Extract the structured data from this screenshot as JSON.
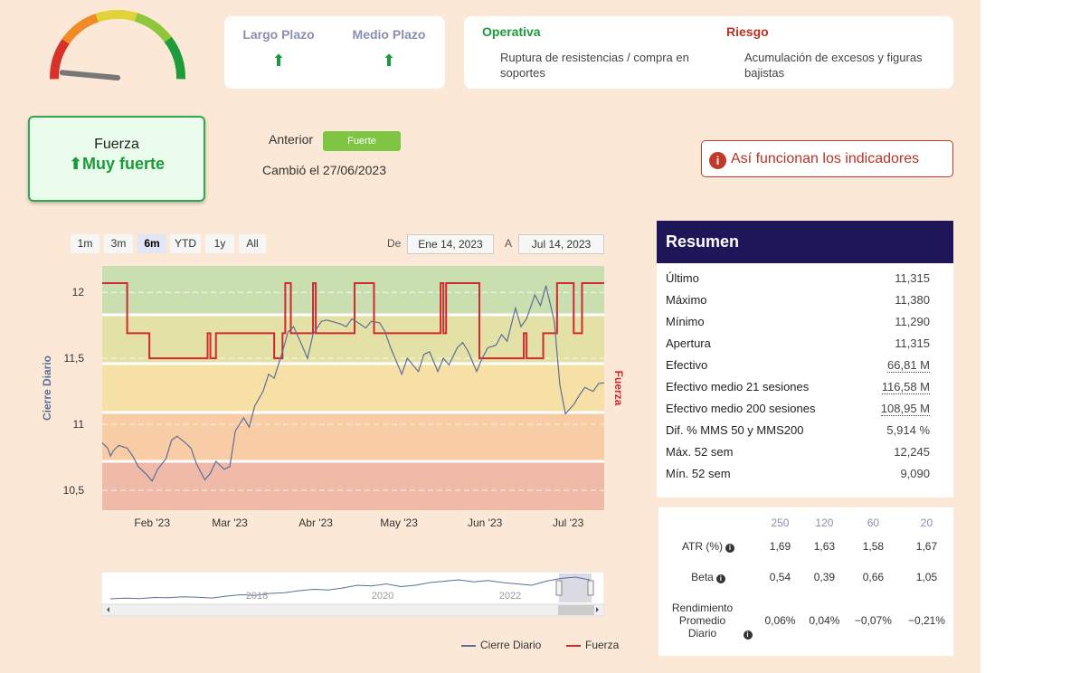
{
  "gauge": {
    "icon": "speedometer-gauge",
    "segment_colors": [
      "#d63229",
      "#f08a24",
      "#e3d33a",
      "#8fc63b",
      "#1f9c3a"
    ],
    "needle_color": "#777777",
    "level_fraction": 0.05
  },
  "trend": {
    "largo_label": "Largo Plazo",
    "medio_label": "Medio Plazo",
    "largo_arrow": "⬆",
    "medio_arrow": "⬆"
  },
  "operativa": {
    "title": "Operativa",
    "text": "Ruptura de resistencias / compra en soportes",
    "color": "#1a9a3a"
  },
  "riesgo": {
    "title": "Riesgo",
    "text": "Acumulación de excesos y figuras bajistas",
    "color": "#b93324"
  },
  "fuerza": {
    "label": "Fuerza",
    "arrow": "⬆",
    "value": "Muy fuerte"
  },
  "anterior": {
    "label": "Anterior",
    "badge": "Fuerte"
  },
  "cambio": "Cambió el 27/06/2023",
  "info_button": {
    "icon": "i",
    "label": "Así funcionan los indicadores"
  },
  "ranges": [
    "1m",
    "3m",
    "6m",
    "YTD",
    "1y",
    "All"
  ],
  "selected_range": "6m",
  "date_range": {
    "from_label": "De",
    "from": "Ene 14, 2023",
    "to_label": "A",
    "to": "Jul 14, 2023"
  },
  "legend": {
    "cierre": "Cierre Diario",
    "fuerza": "Fuerza"
  },
  "resumen": {
    "title": "Resumen",
    "rows": [
      {
        "label": "Último",
        "value": "11,315"
      },
      {
        "label": "Máximo",
        "value": "11,380"
      },
      {
        "label": "Mínimo",
        "value": "11,290"
      },
      {
        "label": "Apertura",
        "value": "11,315"
      },
      {
        "label": "Efectivo",
        "value": "66,81 M"
      },
      {
        "label": "Efectivo medio 21 sesiones",
        "value": "116,58 M"
      },
      {
        "label": "Efectivo medio 200 sesiones",
        "value": "108,95 M"
      },
      {
        "label": "Dif. % MMS 50 y MMS200",
        "value": "5,914 %"
      },
      {
        "label": "Máx. 52 sem",
        "value": "12,245"
      },
      {
        "label": "Mín. 52 sem",
        "value": "9,090"
      }
    ]
  },
  "stats": {
    "headers": [
      "250",
      "120",
      "60",
      "20"
    ],
    "atr": {
      "label": "ATR (%)",
      "values": [
        "1,69",
        "1,63",
        "1,58",
        "1,67"
      ]
    },
    "beta": {
      "label": "Beta",
      "values": [
        "0,54",
        "0,39",
        "0,66",
        "1,05"
      ]
    },
    "rend": {
      "label": "Rendimiento Promedio Diario",
      "values": [
        "0,06%",
        "0,04%",
        "−0,07%",
        "−0,21%"
      ]
    }
  },
  "chart_data": {
    "type": "line",
    "title": "",
    "ylabel": "Cierre Diario",
    "y2label": "Fuerza",
    "ylim": [
      10.35,
      12.2
    ],
    "yticks": [
      "10,5",
      "11",
      "11,5",
      "12"
    ],
    "xticks": [
      "Feb '23",
      "Mar '23",
      "Abr '23",
      "May '23",
      "Jun '23",
      "Jul '23"
    ],
    "xrange": [
      "2023-01-14",
      "2023-07-14"
    ],
    "bands": [
      {
        "color": "#efbaa8"
      },
      {
        "color": "#f8cda6"
      },
      {
        "color": "#f6e0a6"
      },
      {
        "color": "#e3e1a6"
      },
      {
        "color": "#cadfb0"
      }
    ],
    "series": [
      {
        "name": "Cierre Diario",
        "color": "#5a6f9a",
        "x": [
          "2023-01-14",
          "2023-01-16",
          "2023-01-17",
          "2023-01-18",
          "2023-01-20",
          "2023-01-23",
          "2023-01-25",
          "2023-01-27",
          "2023-01-30",
          "2023-02-01",
          "2023-02-03",
          "2023-02-06",
          "2023-02-08",
          "2023-02-10",
          "2023-02-13",
          "2023-02-15",
          "2023-02-17",
          "2023-02-20",
          "2023-02-22",
          "2023-02-24",
          "2023-02-27",
          "2023-03-01",
          "2023-03-03",
          "2023-03-06",
          "2023-03-08",
          "2023-03-10",
          "2023-03-13",
          "2023-03-15",
          "2023-03-17",
          "2023-03-20",
          "2023-03-22",
          "2023-03-24",
          "2023-03-27",
          "2023-03-29",
          "2023-03-31",
          "2023-04-03",
          "2023-04-05",
          "2023-04-10",
          "2023-04-12",
          "2023-04-14",
          "2023-04-17",
          "2023-04-19",
          "2023-04-21",
          "2023-04-24",
          "2023-04-26",
          "2023-04-28",
          "2023-05-02",
          "2023-05-04",
          "2023-05-08",
          "2023-05-10",
          "2023-05-12",
          "2023-05-15",
          "2023-05-17",
          "2023-05-19",
          "2023-05-22",
          "2023-05-24",
          "2023-05-26",
          "2023-05-29",
          "2023-05-31",
          "2023-06-02",
          "2023-06-05",
          "2023-06-07",
          "2023-06-09",
          "2023-06-12",
          "2023-06-14",
          "2023-06-16",
          "2023-06-19",
          "2023-06-21",
          "2023-06-23",
          "2023-06-26",
          "2023-06-28",
          "2023-06-30",
          "2023-07-03",
          "2023-07-05",
          "2023-07-07",
          "2023-07-10",
          "2023-07-12",
          "2023-07-14"
        ],
        "values": [
          10.86,
          10.82,
          10.76,
          10.8,
          10.84,
          10.82,
          10.76,
          10.68,
          10.62,
          10.57,
          10.66,
          10.74,
          10.88,
          10.91,
          10.86,
          10.82,
          10.7,
          10.58,
          10.63,
          10.72,
          10.66,
          10.68,
          10.95,
          11.05,
          10.98,
          11.14,
          11.25,
          11.38,
          11.35,
          11.55,
          11.7,
          11.74,
          11.6,
          11.5,
          11.68,
          11.78,
          11.79,
          11.76,
          11.74,
          11.8,
          11.76,
          11.73,
          11.78,
          11.77,
          11.7,
          11.58,
          11.38,
          11.5,
          11.4,
          11.53,
          11.55,
          11.4,
          11.5,
          11.45,
          11.58,
          11.62,
          11.55,
          11.4,
          11.5,
          11.58,
          11.6,
          11.68,
          11.63,
          11.88,
          11.74,
          11.8,
          11.98,
          11.9,
          12.05,
          11.78,
          11.3,
          11.08,
          11.15,
          11.22,
          11.28,
          11.25,
          11.31,
          11.315
        ]
      },
      {
        "name": "Fuerza",
        "color": "#d22830",
        "x": [
          "2023-01-14",
          "2023-01-23",
          "2023-01-31",
          "2023-02-18",
          "2023-02-21",
          "2023-02-22",
          "2023-02-24",
          "2023-03-10",
          "2023-03-17",
          "2023-03-20",
          "2023-03-21",
          "2023-03-23",
          "2023-03-31",
          "2023-04-01",
          "2023-04-14",
          "2023-04-15",
          "2023-04-21",
          "2023-04-22",
          "2023-05-15",
          "2023-05-16",
          "2023-05-17",
          "2023-05-18",
          "2023-05-19",
          "2023-05-30",
          "2023-06-14",
          "2023-06-15",
          "2023-06-16",
          "2023-06-20",
          "2023-06-22",
          "2023-06-27",
          "2023-06-30",
          "2023-07-03",
          "2023-07-06",
          "2023-07-14"
        ],
        "values": [
          "Muy fuerte",
          "Fuerte",
          "Medio",
          "Medio",
          "Fuerte",
          "Medio",
          "Fuerte",
          "Fuerte",
          "Medio",
          "Fuerte",
          "Muy fuerte",
          "Fuerte",
          "Muy fuerte",
          "Fuerte",
          "Fuerte",
          "Muy fuerte",
          "Muy fuerte",
          "Fuerte",
          "Fuerte",
          "Muy fuerte",
          "Fuerte",
          "Muy fuerte",
          "Muy fuerte",
          "Medio",
          "Medio",
          "Fuerte",
          "Medio",
          "Medio",
          "Fuerte",
          "Muy fuerte",
          "Muy fuerte",
          "Fuerte",
          "Muy fuerte",
          "Muy fuerte"
        ]
      }
    ],
    "fuerza_levels": {
      "Medio": 11.5,
      "Fuerte": 11.69,
      "Muy fuerte": 12.07
    },
    "navigator": {
      "years": [
        "2018",
        "2020",
        "2022"
      ],
      "values": [
        9.9,
        9.95,
        9.92,
        10.0,
        9.98,
        10.05,
        10.02,
        9.96,
        10.1,
        10.2,
        10.15,
        10.3,
        10.35,
        10.5,
        10.6,
        10.55,
        10.7,
        10.9,
        10.85,
        11.0,
        10.8,
        10.9,
        11.1,
        11.2,
        11.3,
        11.15,
        11.25,
        11.1,
        11.0,
        10.9,
        11.2,
        11.4,
        11.5,
        11.3
      ]
    }
  }
}
